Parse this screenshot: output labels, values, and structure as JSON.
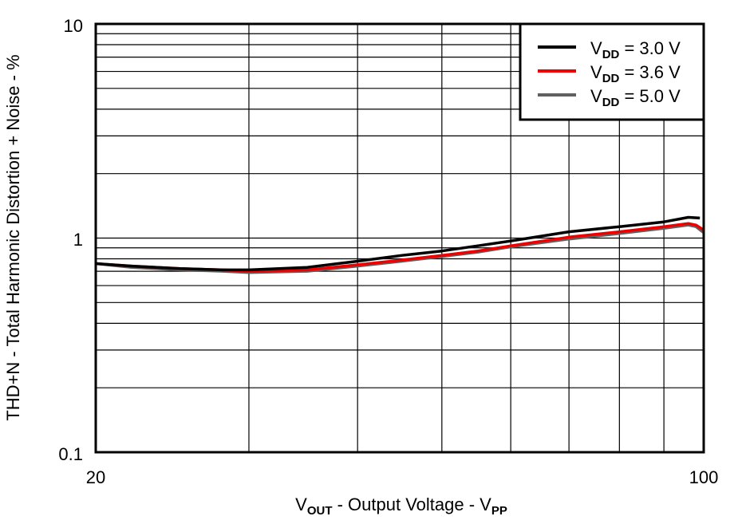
{
  "chart_data": {
    "type": "line",
    "title": "",
    "xlabel": "V_OUT - Output Voltage - V_PP",
    "xlabel_parts": {
      "main": "V",
      "sub": "OUT",
      "rest": " - Output Voltage - V",
      "sub2": "PP"
    },
    "ylabel": "THD+N - Total Harmonic Distortion + Noise - %",
    "xscale": "log",
    "yscale": "log",
    "xlim": [
      20,
      100
    ],
    "ylim": [
      0.1,
      10
    ],
    "x_tick_labels": [
      "20",
      "100"
    ],
    "y_tick_labels": [
      "0.1",
      "1",
      "10"
    ],
    "grid": true,
    "legend_position": "upper right",
    "series": [
      {
        "name": "VDD = 3.0 V",
        "label_main": "V",
        "label_sub": "DD",
        "label_rest": " = 3.0 V",
        "color": "#000000",
        "x": [
          20,
          22,
          25,
          28,
          30,
          35,
          40,
          45,
          50,
          55,
          60,
          70,
          80,
          90,
          96,
          99
        ],
        "y": [
          0.76,
          0.74,
          0.72,
          0.71,
          0.71,
          0.73,
          0.78,
          0.83,
          0.87,
          0.92,
          0.97,
          1.07,
          1.13,
          1.19,
          1.25,
          1.24
        ]
      },
      {
        "name": "VDD = 3.6 V",
        "label_main": "V",
        "label_sub": "DD",
        "label_rest": " = 3.6 V",
        "color": "#ee0000",
        "x": [
          20,
          22,
          25,
          28,
          30,
          35,
          40,
          45,
          50,
          55,
          60,
          70,
          80,
          90,
          96,
          98,
          100
        ],
        "y": [
          0.76,
          0.74,
          0.72,
          0.71,
          0.7,
          0.71,
          0.75,
          0.79,
          0.83,
          0.87,
          0.92,
          1.01,
          1.07,
          1.13,
          1.17,
          1.15,
          1.09
        ]
      },
      {
        "name": "VDD = 5.0 V",
        "label_main": "V",
        "label_sub": "DD",
        "label_rest": " = 5.0 V",
        "color": "#606060",
        "x": [
          20,
          22,
          25,
          28,
          30,
          35,
          40,
          45,
          50,
          55,
          60,
          70,
          80,
          90,
          96,
          98,
          100
        ],
        "y": [
          0.76,
          0.73,
          0.71,
          0.7,
          0.69,
          0.7,
          0.74,
          0.78,
          0.82,
          0.86,
          0.91,
          0.99,
          1.05,
          1.11,
          1.15,
          1.13,
          1.06
        ]
      }
    ]
  }
}
